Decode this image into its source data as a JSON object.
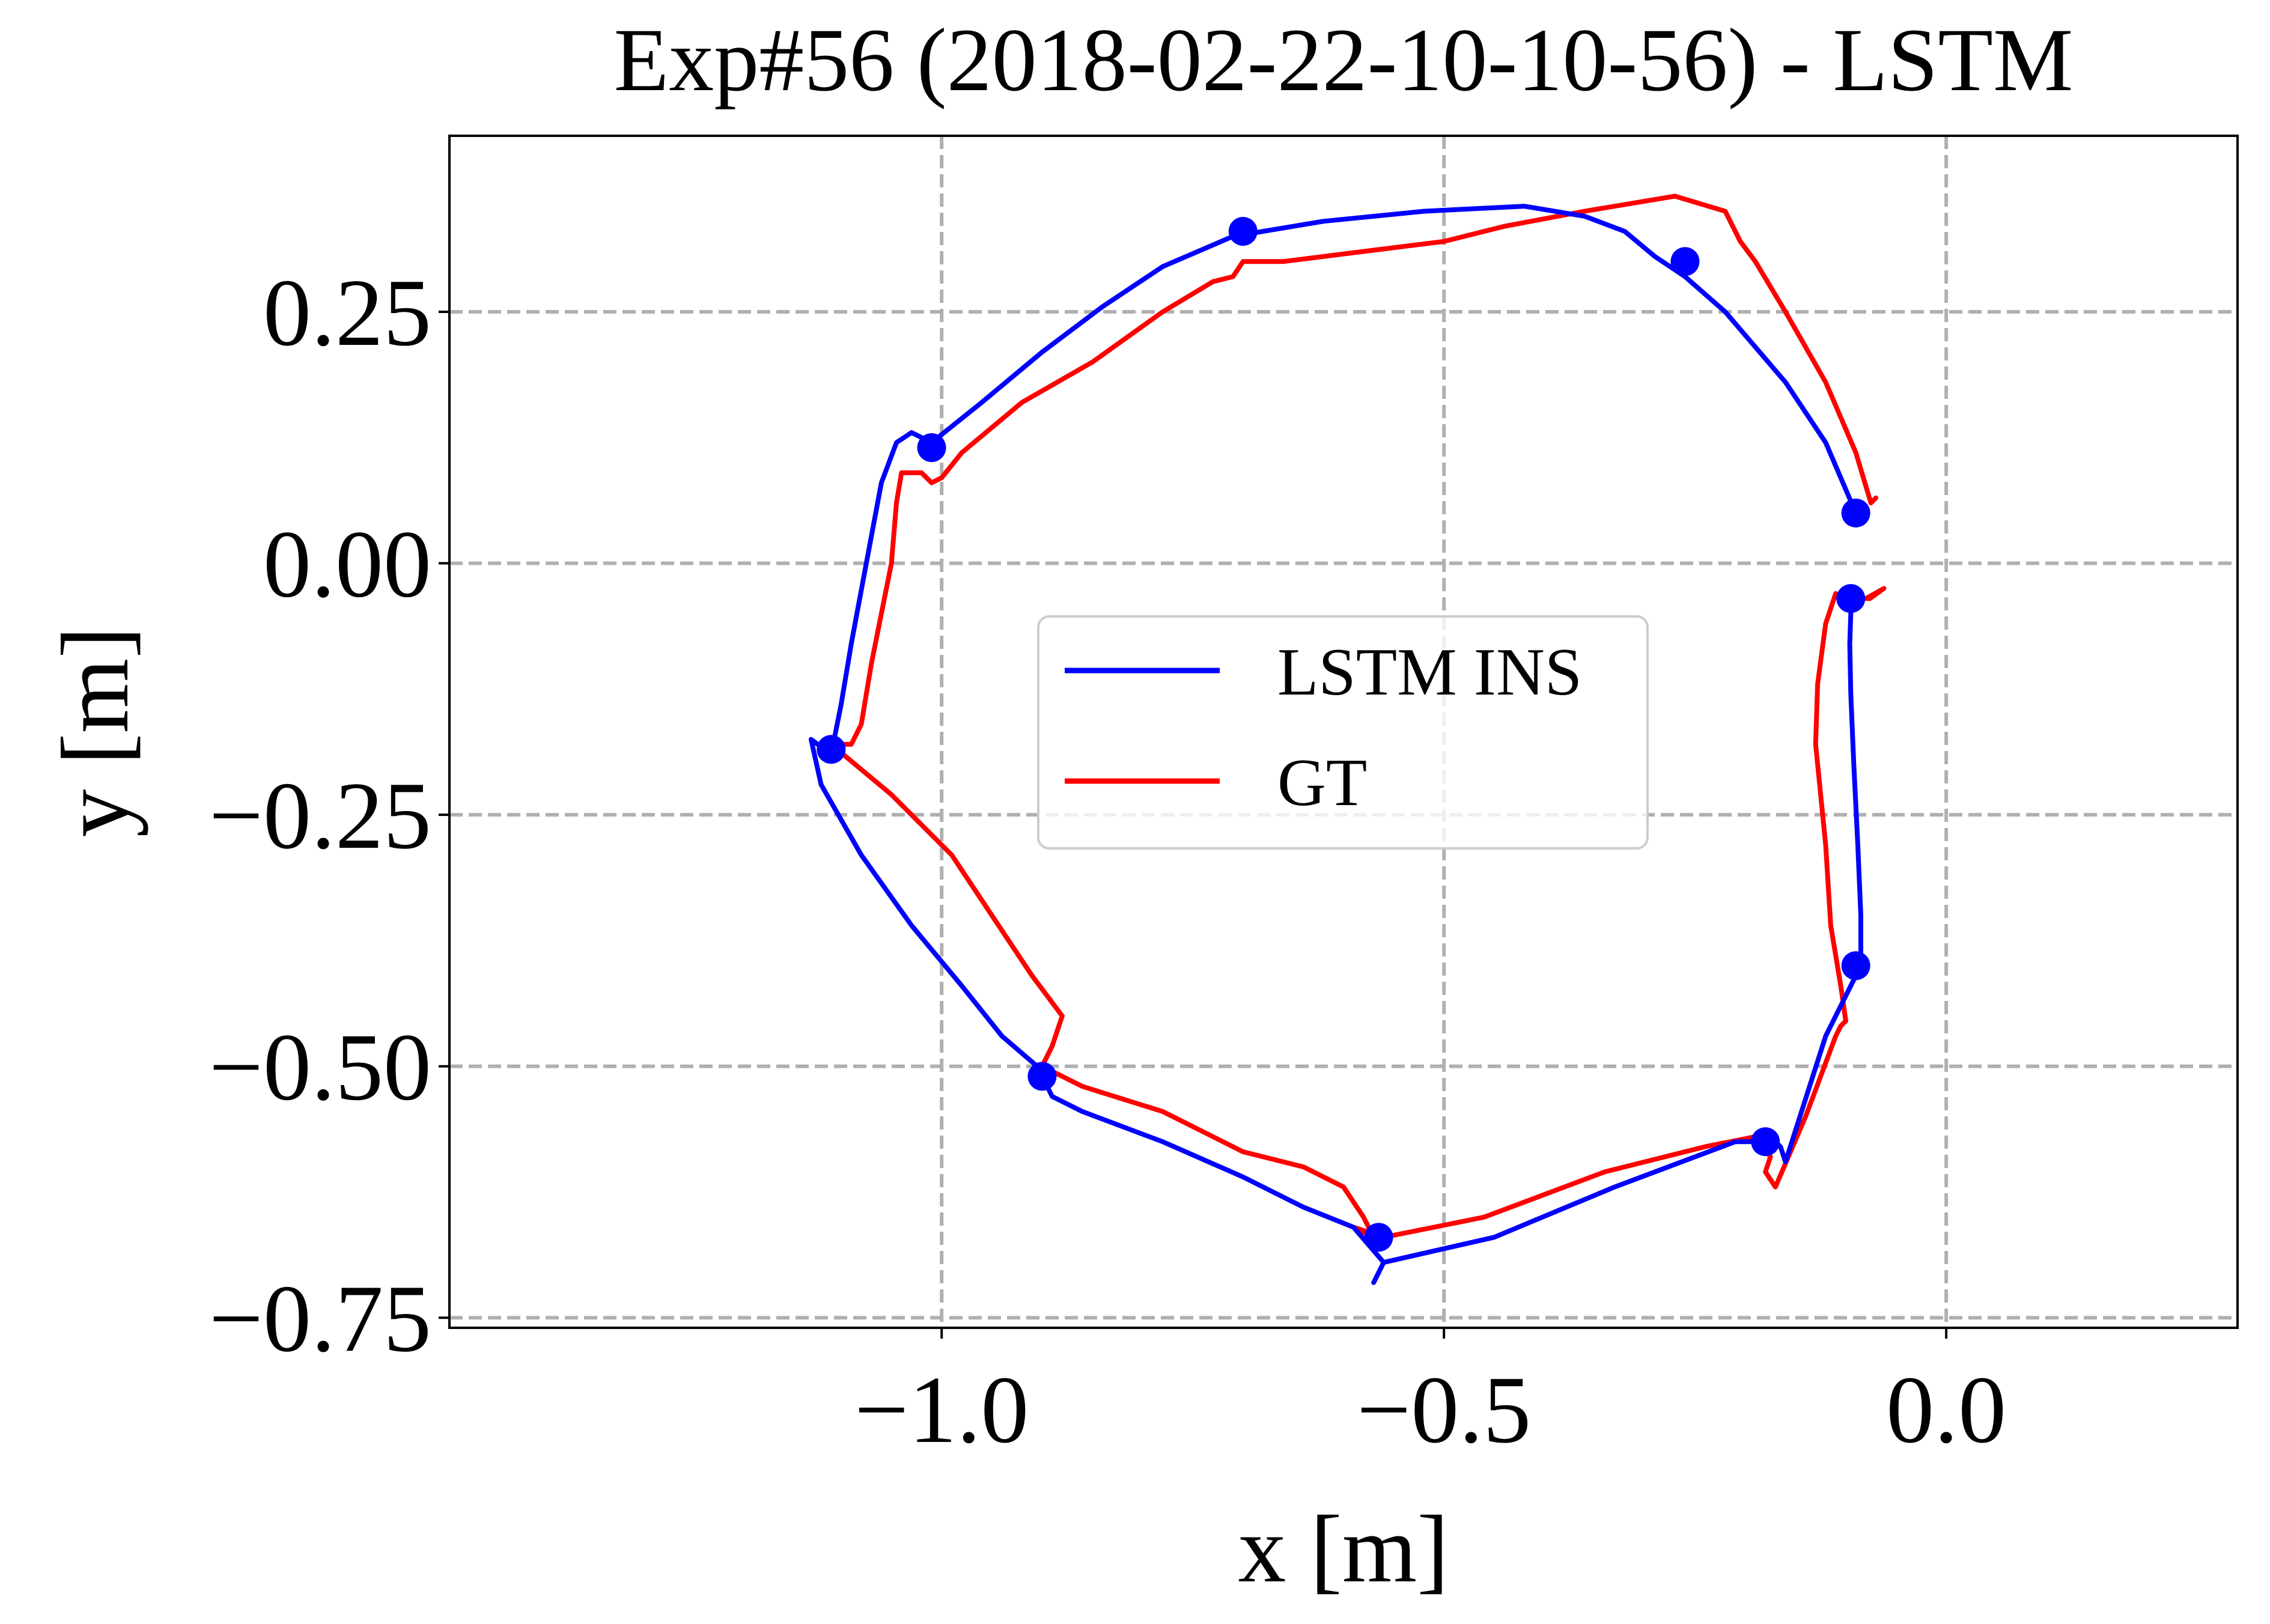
{
  "chart_data": {
    "type": "line",
    "title": "Exp#56 (2018-02-22-10-10-56) - LSTM",
    "xlabel": "x [m]",
    "ylabel": "y [m]",
    "xlim": [
      -1.49,
      0.29
    ],
    "ylim": [
      -0.76,
      0.425
    ],
    "xticks": [
      -1.0,
      -0.5,
      0.0
    ],
    "xtick_labels": [
      "−1.0",
      "−0.5",
      "0.0"
    ],
    "yticks": [
      0.25,
      0.0,
      -0.25,
      -0.5,
      -0.75
    ],
    "ytick_labels": [
      "0.25",
      "0.00",
      "−0.25",
      "−0.50",
      "−0.75"
    ],
    "grid": true,
    "grid_style": "dashed",
    "legend_position": "center",
    "series": [
      {
        "name": "LSTM INS",
        "color": "#0000ff",
        "x": [
          -0.09,
          -0.12,
          -0.16,
          -0.22,
          -0.26,
          -0.29,
          -0.32,
          -0.36,
          -0.42,
          -0.52,
          -0.62,
          -0.71,
          -0.78,
          -0.84,
          -0.9,
          -0.96,
          -1.01,
          -1.03,
          -1.045,
          -1.06,
          -1.075,
          -1.09,
          -1.1,
          -1.11,
          -1.13,
          -1.12,
          -1.08,
          -1.03,
          -0.98,
          -0.94,
          -0.905,
          -0.89,
          -0.86,
          -0.78,
          -0.7,
          -0.64,
          -0.59,
          -0.56,
          -0.57,
          -0.56,
          -0.45,
          -0.33,
          -0.21,
          -0.17,
          -0.165,
          -0.16,
          -0.12,
          -0.095,
          -0.085,
          -0.085,
          -0.088,
          -0.092,
          -0.095,
          -0.096,
          -0.095,
          -0.093,
          -0.095
        ],
        "y": [
          0.05,
          0.12,
          0.18,
          0.25,
          0.285,
          0.305,
          0.33,
          0.345,
          0.355,
          0.35,
          0.34,
          0.325,
          0.295,
          0.255,
          0.21,
          0.16,
          0.12,
          0.13,
          0.12,
          0.08,
          0.0,
          -0.08,
          -0.14,
          -0.19,
          -0.175,
          -0.22,
          -0.29,
          -0.36,
          -0.42,
          -0.47,
          -0.5,
          -0.53,
          -0.545,
          -0.575,
          -0.61,
          -0.64,
          -0.66,
          -0.695,
          -0.715,
          -0.695,
          -0.67,
          -0.62,
          -0.575,
          -0.575,
          -0.58,
          -0.595,
          -0.47,
          -0.42,
          -0.4,
          -0.35,
          -0.28,
          -0.2,
          -0.13,
          -0.08,
          -0.05,
          -0.035,
          -0.04
        ]
      },
      {
        "name": "GT",
        "color": "#ff0000",
        "x": [
          -0.07,
          -0.075,
          -0.09,
          -0.12,
          -0.16,
          -0.19,
          -0.205,
          -0.22,
          -0.27,
          -0.3,
          -0.36,
          -0.44,
          -0.5,
          -0.58,
          -0.66,
          -0.7,
          -0.71,
          -0.73,
          -0.78,
          -0.85,
          -0.92,
          -0.98,
          -1.0,
          -1.01,
          -1.02,
          -1.04,
          -1.045,
          -1.05,
          -1.07,
          -1.08,
          -1.09,
          -1.105,
          -1.11,
          -1.05,
          -0.99,
          -0.95,
          -0.91,
          -0.88,
          -0.89,
          -0.9,
          -0.86,
          -0.78,
          -0.7,
          -0.64,
          -0.6,
          -0.58,
          -0.57,
          -0.59,
          -0.56,
          -0.46,
          -0.34,
          -0.24,
          -0.19,
          -0.175,
          -0.18,
          -0.17,
          -0.14,
          -0.11,
          -0.105,
          -0.1,
          -0.105,
          -0.115,
          -0.12,
          -0.13,
          -0.128,
          -0.12,
          -0.11,
          -0.1,
          -0.09,
          -0.1,
          -0.076,
          -0.062,
          -0.08
        ],
        "y": [
          0.065,
          0.06,
          0.11,
          0.18,
          0.25,
          0.3,
          0.32,
          0.35,
          0.365,
          0.36,
          0.35,
          0.335,
          0.32,
          0.31,
          0.3,
          0.3,
          0.285,
          0.28,
          0.25,
          0.2,
          0.16,
          0.11,
          0.085,
          0.08,
          0.09,
          0.09,
          0.06,
          0.0,
          -0.1,
          -0.16,
          -0.18,
          -0.18,
          -0.18,
          -0.23,
          -0.29,
          -0.35,
          -0.41,
          -0.45,
          -0.48,
          -0.5,
          -0.52,
          -0.545,
          -0.585,
          -0.6,
          -0.62,
          -0.65,
          -0.67,
          -0.66,
          -0.67,
          -0.65,
          -0.605,
          -0.58,
          -0.57,
          -0.59,
          -0.605,
          -0.62,
          -0.55,
          -0.47,
          -0.46,
          -0.455,
          -0.42,
          -0.36,
          -0.28,
          -0.18,
          -0.12,
          -0.06,
          -0.03,
          -0.035,
          -0.04,
          -0.035,
          -0.035,
          -0.025,
          -0.035
        ]
      }
    ],
    "markers": {
      "color": "#0000ff",
      "x": [
        -0.09,
        -0.26,
        -0.7,
        -1.01,
        -1.11,
        -0.9,
        -0.565,
        -0.18,
        -0.09,
        -0.095
      ],
      "y": [
        0.05,
        0.3,
        0.33,
        0.115,
        -0.185,
        -0.51,
        -0.67,
        -0.575,
        -0.4,
        -0.035
      ]
    }
  }
}
